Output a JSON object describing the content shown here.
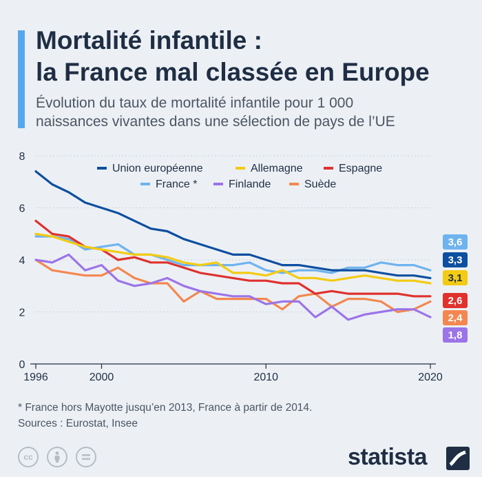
{
  "title_line1": "Mortalité infantile :",
  "title_line2": "la France mal classée en Europe",
  "subtitle_line1": "Évolution du taux de mortalité infantile pour 1 000",
  "subtitle_line2": "naissances vivantes dans une sélection de pays de l’UE",
  "footnote": "* France hors Mayotte jusqu’en 2013, France à partir de 2014.",
  "sources": "Sources : Eurostat, Insee",
  "brand": "statista",
  "icons": [
    "creative-commons-icon",
    "attribution-person-icon",
    "no-derivatives-icon",
    "statista-logo-icon"
  ],
  "chart_data": {
    "type": "line",
    "x": [
      1996,
      1997,
      1998,
      1999,
      2000,
      2001,
      2002,
      2003,
      2004,
      2005,
      2006,
      2007,
      2008,
      2009,
      2010,
      2011,
      2012,
      2013,
      2014,
      2015,
      2016,
      2017,
      2018,
      2019,
      2020
    ],
    "x_ticks": [
      "1996",
      "2000",
      "2010",
      "2020"
    ],
    "y_ticks": [
      "0",
      "2",
      "4",
      "6",
      "8"
    ],
    "ylim": [
      0,
      8
    ],
    "xlim": [
      1996,
      2020
    ],
    "legend_position": "top",
    "series": [
      {
        "name": "Union européenne",
        "color": "#0d4fa0",
        "end_label": "3,3",
        "values": [
          7.4,
          6.9,
          6.6,
          6.2,
          6.0,
          5.8,
          5.5,
          5.2,
          5.1,
          4.8,
          4.6,
          4.4,
          4.2,
          4.2,
          4.0,
          3.8,
          3.8,
          3.7,
          3.6,
          3.6,
          3.6,
          3.5,
          3.4,
          3.4,
          3.3
        ]
      },
      {
        "name": "Allemagne",
        "color": "#f3cb12",
        "end_label": "3,1",
        "values": [
          5.0,
          4.9,
          4.7,
          4.5,
          4.4,
          4.3,
          4.2,
          4.2,
          4.1,
          3.9,
          3.8,
          3.9,
          3.5,
          3.5,
          3.4,
          3.6,
          3.3,
          3.3,
          3.2,
          3.3,
          3.4,
          3.3,
          3.2,
          3.2,
          3.1
        ]
      },
      {
        "name": "Espagne",
        "color": "#e0312d",
        "end_label": "2,6",
        "values": [
          5.5,
          5.0,
          4.9,
          4.5,
          4.4,
          4.0,
          4.1,
          3.9,
          3.9,
          3.7,
          3.5,
          3.4,
          3.3,
          3.2,
          3.2,
          3.1,
          3.1,
          2.7,
          2.8,
          2.7,
          2.7,
          2.7,
          2.7,
          2.6,
          2.6
        ]
      },
      {
        "name": "France *",
        "color": "#6fb3ee",
        "end_label": "3,6",
        "values": [
          4.9,
          4.9,
          4.8,
          4.4,
          4.5,
          4.6,
          4.2,
          4.2,
          4.0,
          3.8,
          3.8,
          3.8,
          3.8,
          3.9,
          3.6,
          3.5,
          3.6,
          3.6,
          3.5,
          3.7,
          3.7,
          3.9,
          3.8,
          3.8,
          3.6
        ]
      },
      {
        "name": "Finlande",
        "color": "#9b74e8",
        "end_label": "1,8",
        "values": [
          4.0,
          3.9,
          4.2,
          3.6,
          3.8,
          3.2,
          3.0,
          3.1,
          3.3,
          3.0,
          2.8,
          2.7,
          2.6,
          2.6,
          2.3,
          2.4,
          2.4,
          1.8,
          2.2,
          1.7,
          1.9,
          2.0,
          2.1,
          2.1,
          1.8
        ]
      },
      {
        "name": "Suède",
        "color": "#f4874f",
        "end_label": "2,4",
        "values": [
          4.0,
          3.6,
          3.5,
          3.4,
          3.4,
          3.7,
          3.3,
          3.1,
          3.1,
          2.4,
          2.8,
          2.5,
          2.5,
          2.5,
          2.5,
          2.1,
          2.6,
          2.7,
          2.2,
          2.5,
          2.5,
          2.4,
          2.0,
          2.1,
          2.4
        ]
      }
    ]
  }
}
